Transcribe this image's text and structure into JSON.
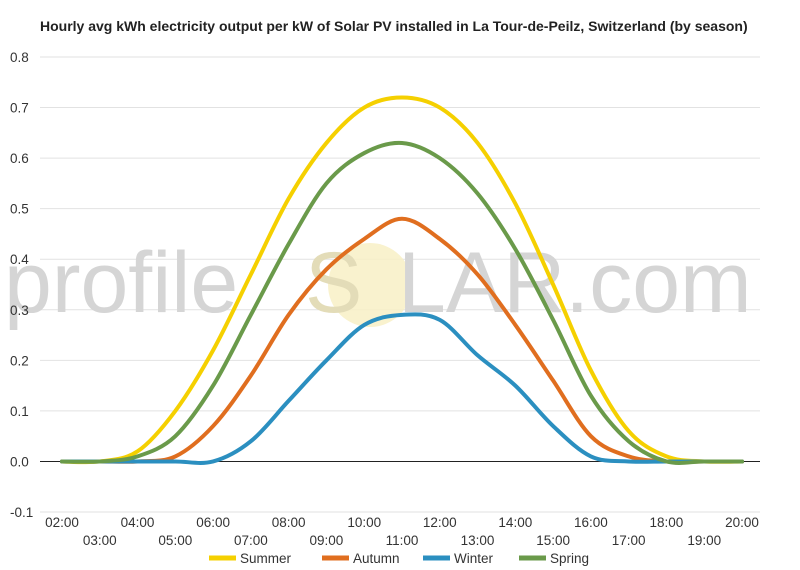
{
  "chart_data": {
    "type": "line",
    "title": "Hourly avg kWh electricity output per kW of Solar PV installed in La Tour-de-Peilz, Switzerland (by season)",
    "xlabel": "",
    "ylabel": "",
    "x": [
      2,
      3,
      4,
      5,
      6,
      7,
      8,
      9,
      10,
      11,
      12,
      13,
      14,
      15,
      16,
      17,
      18,
      19,
      20
    ],
    "x_tick_labels": [
      "02:00",
      "03:00",
      "04:00",
      "05:00",
      "06:00",
      "07:00",
      "08:00",
      "09:00",
      "10:00",
      "11:00",
      "12:00",
      "13:00",
      "14:00",
      "15:00",
      "16:00",
      "17:00",
      "18:00",
      "19:00",
      "20:00"
    ],
    "ylim": [
      -0.1,
      0.8
    ],
    "y_ticks": [
      -0.1,
      0.0,
      0.1,
      0.2,
      0.3,
      0.4,
      0.5,
      0.6,
      0.7,
      0.8
    ],
    "y_tick_labels": [
      "-0.1",
      "0.0",
      "0.1",
      "0.2",
      "0.3",
      "0.4",
      "0.5",
      "0.6",
      "0.7",
      "0.8"
    ],
    "grid": true,
    "legend_position": "bottom",
    "series": [
      {
        "name": "Summer",
        "color": "#f5d000",
        "values": [
          0.0,
          0.0,
          0.02,
          0.1,
          0.22,
          0.37,
          0.52,
          0.63,
          0.7,
          0.72,
          0.7,
          0.63,
          0.51,
          0.35,
          0.18,
          0.06,
          0.01,
          0.0,
          0.0
        ]
      },
      {
        "name": "Autumn",
        "color": "#e06e1f",
        "values": [
          0.0,
          0.0,
          0.0,
          0.01,
          0.07,
          0.17,
          0.29,
          0.38,
          0.44,
          0.48,
          0.44,
          0.37,
          0.27,
          0.16,
          0.05,
          0.01,
          0.0,
          0.0,
          0.0
        ]
      },
      {
        "name": "Winter",
        "color": "#2b8fc0",
        "values": [
          0.0,
          0.0,
          0.0,
          0.0,
          0.0,
          0.04,
          0.12,
          0.2,
          0.27,
          0.29,
          0.28,
          0.21,
          0.15,
          0.07,
          0.01,
          0.0,
          0.0,
          0.0,
          0.0
        ]
      },
      {
        "name": "Spring",
        "color": "#6a9a4a",
        "values": [
          0.0,
          0.0,
          0.01,
          0.05,
          0.15,
          0.29,
          0.43,
          0.55,
          0.61,
          0.63,
          0.6,
          0.53,
          0.42,
          0.28,
          0.13,
          0.04,
          0.0,
          0.0,
          0.0
        ]
      }
    ]
  },
  "watermark": {
    "left": "profile",
    "sun_letter": "S",
    "right": "LAR.com"
  }
}
